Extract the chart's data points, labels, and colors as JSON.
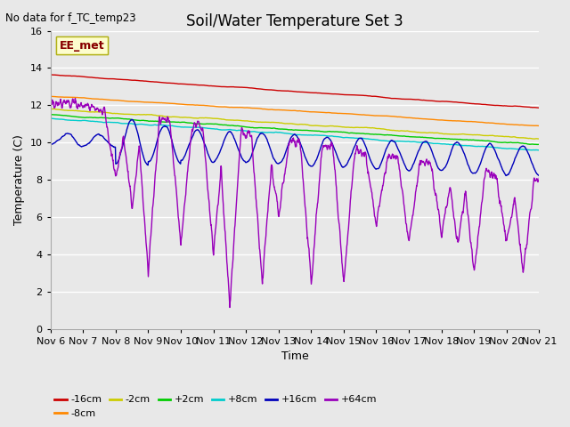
{
  "title": "Soil/Water Temperature Set 3",
  "subtitle": "No data for f_TC_temp23",
  "xlabel": "Time",
  "ylabel": "Temperature (C)",
  "ylim": [
    0,
    16
  ],
  "yticks": [
    0,
    2,
    4,
    6,
    8,
    10,
    12,
    14,
    16
  ],
  "bg_color": "#e8e8e8",
  "legend_label": "EE_met",
  "series_order": [
    "-16cm",
    "-8cm",
    "-2cm",
    "+2cm",
    "+8cm",
    "+16cm",
    "+64cm"
  ],
  "colors": {
    "-16cm": "#cc0000",
    "-8cm": "#ff8800",
    "-2cm": "#cccc00",
    "+2cm": "#00cc00",
    "+8cm": "#00cccc",
    "+16cm": "#0000bb",
    "+64cm": "#9900bb"
  },
  "xtick_labels": [
    "Nov 6",
    "Nov 7",
    "Nov 8",
    "Nov 9",
    "Nov 10",
    "Nov 11",
    "Nov 12",
    "Nov 13",
    "Nov 14",
    "Nov 15",
    "Nov 16",
    "Nov 17",
    "Nov 18",
    "Nov 19",
    "Nov 20",
    "Nov 21"
  ],
  "title_fontsize": 12,
  "label_fontsize": 9,
  "tick_fontsize": 8
}
